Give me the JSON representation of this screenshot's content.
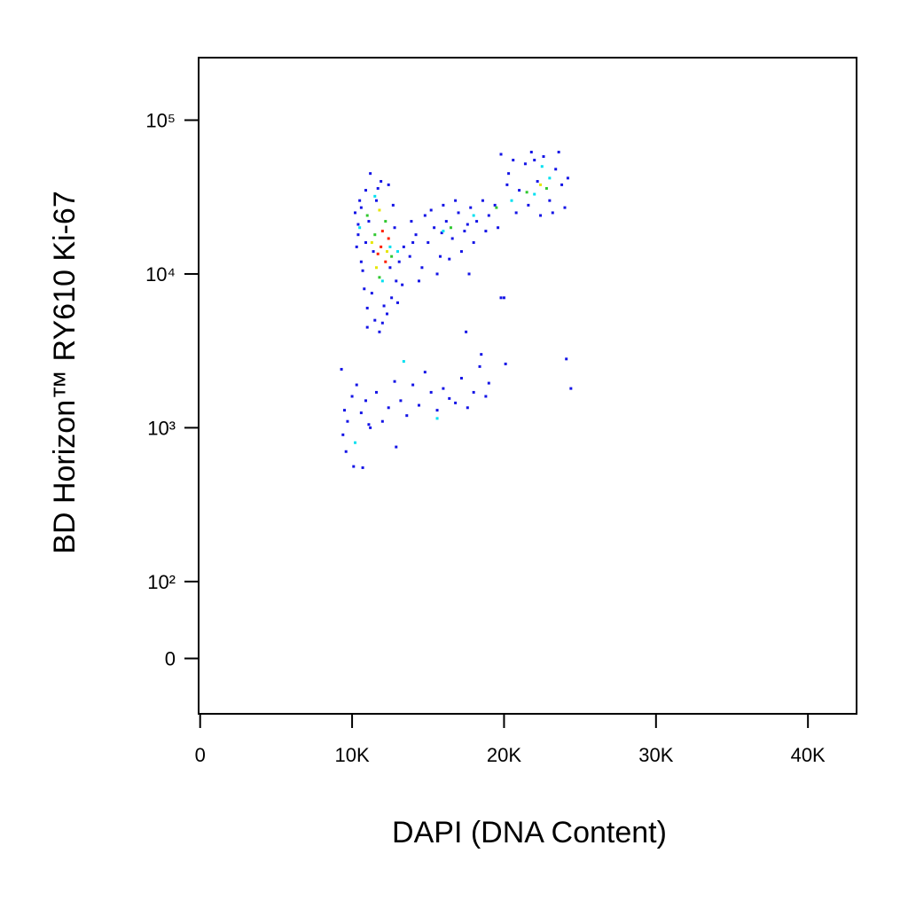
{
  "chart_data": {
    "type": "scatter",
    "x_label": "DAPI (DNA Content)",
    "y_label": "BD Horizon™ RY610 Ki-67",
    "xlim": [
      -100,
      43200
    ],
    "ylim": [
      -72,
      255000
    ],
    "yscale": "biexponential",
    "xticks": [
      0,
      {
        "value": 10000,
        "label": "10K"
      },
      {
        "value": 20000,
        "label": "20K"
      },
      {
        "value": 30000,
        "label": "30K"
      },
      {
        "value": 40000,
        "label": "40K"
      }
    ],
    "yticks": [
      0,
      {
        "value": 100,
        "label": "10²"
      },
      {
        "value": 1000,
        "label": "10³"
      },
      {
        "value": 10000,
        "label": "10⁴"
      },
      {
        "value": 100000,
        "label": "10⁵"
      }
    ],
    "series": [
      {
        "color": "#1414e6",
        "x": [
          10200,
          10400,
          10600,
          10800,
          11000,
          10500,
          10900,
          11200,
          11500,
          11800,
          12300,
          12600,
          12900,
          13100,
          12800,
          12400,
          11600,
          11100,
          10300,
          10700,
          11300,
          12100,
          13300,
          10600,
          11900,
          12700,
          13400,
          10900,
          11400,
          12500,
          11000,
          12000,
          13000,
          10400,
          11700,
          13800,
          14200,
          14600,
          15000,
          15400,
          15800,
          16200,
          16600,
          17000,
          17400,
          17800,
          18200,
          18600,
          19000,
          19400,
          13900,
          14800,
          15600,
          16400,
          17200,
          18000,
          18800,
          14400,
          15200,
          16000,
          16800,
          17600,
          19600,
          14000,
          15900,
          17700,
          20000,
          19800,
          20300,
          20600,
          21000,
          21400,
          21800,
          22200,
          22600,
          23000,
          23400,
          23800,
          24200,
          20800,
          21600,
          22400,
          23200,
          24000,
          20200,
          22000,
          23600,
          9300,
          9500,
          9400,
          9700,
          10000,
          10300,
          10600,
          10900,
          11200,
          11600,
          12000,
          12400,
          12800,
          13200,
          13600,
          14000,
          14400,
          14800,
          15200,
          15600,
          16000,
          16400,
          16800,
          17200,
          17600,
          18000,
          18400,
          18800,
          19000,
          12900,
          10100,
          10700,
          9600,
          11100,
          18500,
          20100,
          17500,
          24100,
          24400,
          19800
        ],
        "y": [
          25000,
          18000,
          12000,
          8000,
          6000,
          30000,
          35000,
          45000,
          5000,
          4200,
          5500,
          7000,
          9000,
          12000,
          20000,
          38000,
          30000,
          22000,
          15000,
          10500,
          7500,
          6200,
          8500,
          27000,
          40000,
          28000,
          15000,
          16000,
          14000,
          11000,
          4500,
          4800,
          6500,
          21000,
          36000,
          13000,
          18000,
          11000,
          16000,
          20000,
          13000,
          22000,
          17000,
          25000,
          19000,
          27000,
          22000,
          30000,
          24000,
          28000,
          22000,
          24000,
          10000,
          12500,
          14000,
          16000,
          19000,
          9000,
          26000,
          28000,
          30000,
          21000,
          20000,
          16000,
          18500,
          10000,
          7000,
          60000,
          45000,
          55000,
          35000,
          52000,
          62000,
          40000,
          58000,
          30000,
          48000,
          38000,
          42000,
          25000,
          28000,
          24000,
          25000,
          27000,
          38000,
          55000,
          62000,
          2400,
          1300,
          900,
          1100,
          1600,
          1900,
          1250,
          1500,
          1000,
          1700,
          1100,
          1350,
          2000,
          1500,
          1200,
          1900,
          1400,
          2300,
          1700,
          1300,
          1800,
          1550,
          1450,
          2100,
          1350,
          1700,
          2500,
          1600,
          1950,
          750,
          560,
          550,
          700,
          1050,
          3000,
          2600,
          4200,
          2800,
          1800,
          7000
        ]
      },
      {
        "color": "#00e0f0",
        "x": [
          10500,
          11500,
          12000,
          13000,
          16000,
          18000,
          20500,
          22000,
          22500,
          23000,
          13400,
          15600,
          10200,
          12500
        ],
        "y": [
          20000,
          32000,
          9000,
          14000,
          19000,
          24000,
          30000,
          33000,
          50000,
          42000,
          2700,
          1150,
          800,
          15000
        ]
      },
      {
        "color": "#30c830",
        "x": [
          11000,
          11500,
          12200,
          11800,
          16500,
          19500,
          21500,
          22800,
          12600
        ],
        "y": [
          24000,
          18000,
          22000,
          9500,
          20000,
          27000,
          34000,
          36000,
          13000
        ]
      },
      {
        "color": "#e6e600",
        "x": [
          11300,
          11800,
          12300,
          11600,
          22400
        ],
        "y": [
          16000,
          26000,
          14000,
          11000,
          38000
        ]
      },
      {
        "color": "#ff2000",
        "x": [
          11900,
          12200,
          12000,
          11700,
          12400
        ],
        "y": [
          15000,
          12000,
          19000,
          13500,
          17000
        ]
      }
    ]
  }
}
